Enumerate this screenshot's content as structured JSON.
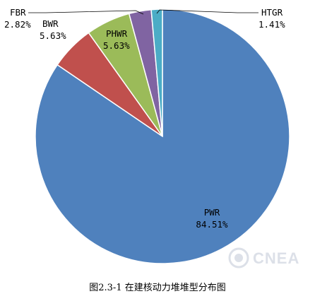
{
  "chart_data": {
    "type": "pie",
    "title": "",
    "slices": [
      {
        "name": "PWR",
        "value": 84.51,
        "label": "84.51%",
        "color": "#4f81bd"
      },
      {
        "name": "BWR",
        "value": 5.63,
        "label": "5.63%",
        "color": "#c0504d"
      },
      {
        "name": "PHWR",
        "value": 5.63,
        "label": "5.63%",
        "color": "#9bbb59"
      },
      {
        "name": "FBR",
        "value": 2.82,
        "label": "2.82%",
        "color": "#8064a2"
      },
      {
        "name": "HTGR",
        "value": 1.41,
        "label": "1.41%",
        "color": "#4bacc6"
      }
    ]
  },
  "caption": "图2.3-1 在建核动力堆堆型分布图",
  "watermark": "CNEA"
}
